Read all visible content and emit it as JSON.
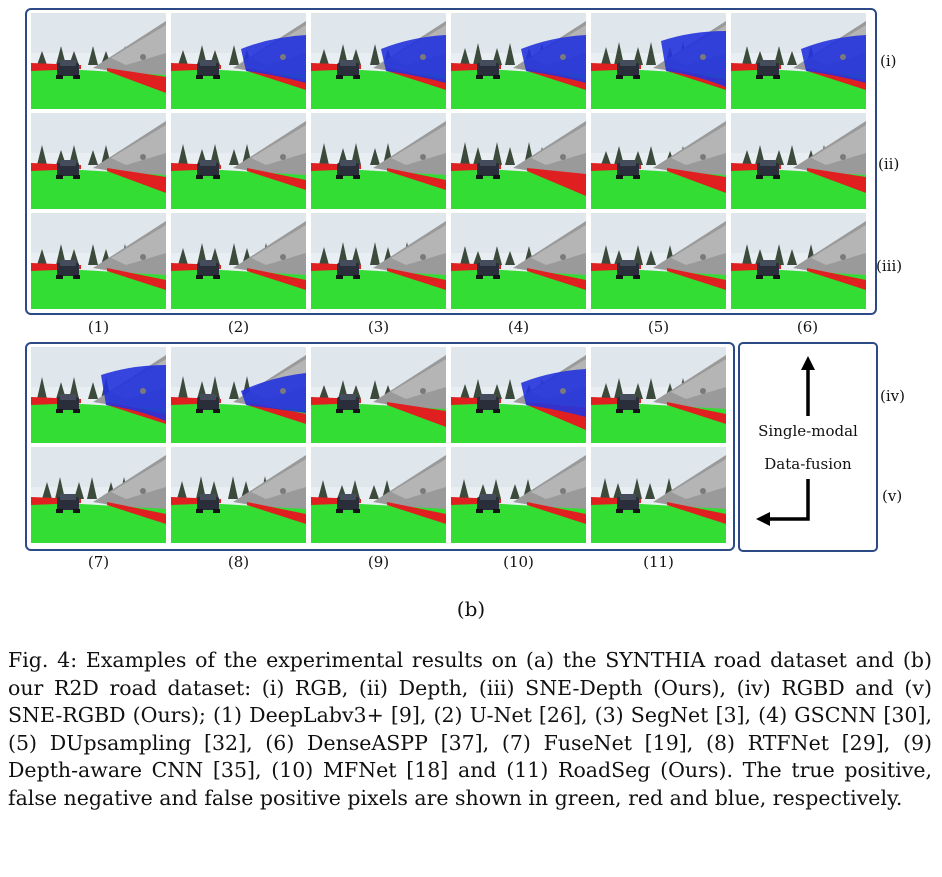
{
  "figure": {
    "sub_label": "(b)",
    "caption": "Fig. 4: Examples of the experimental results on (a) the SYNTHIA road dataset and (b) our R2D road dataset: (i) RGB, (ii) Depth, (iii) SNE-Depth (Ours), (iv) RGBD and (v) SNE-RGBD (Ours); (1) DeepLabv3+ [9], (2) U-Net [26], (3) SegNet [3], (4) GSCNN [30], (5) DUpsampling [32], (6) DenseASPP [37], (7) FuseNet [19], (8) RTFNet [29], (9) Depth-aware CNN [35], (10) MFNet [18] and (11) RoadSeg (Ours). The true positive, false negative and false positive pixels are shown in green, red and blue, respectively.",
    "row_labels": [
      "(i)",
      "(ii)",
      "(iii)",
      "(iv)",
      "(v)"
    ],
    "col_labels_top": [
      "(1)",
      "(2)",
      "(3)",
      "(4)",
      "(5)",
      "(6)"
    ],
    "col_labels_bottom": [
      "(7)",
      "(8)",
      "(9)",
      "(10)",
      "(11)"
    ],
    "legend": {
      "single_modal": "Single-modal",
      "data_fusion": "Data-fusion"
    },
    "colors": {
      "true_positive": "#33dd33",
      "false_negative": "#e02020",
      "false_positive": "#2233dd",
      "frame": "#2c4a86"
    }
  }
}
